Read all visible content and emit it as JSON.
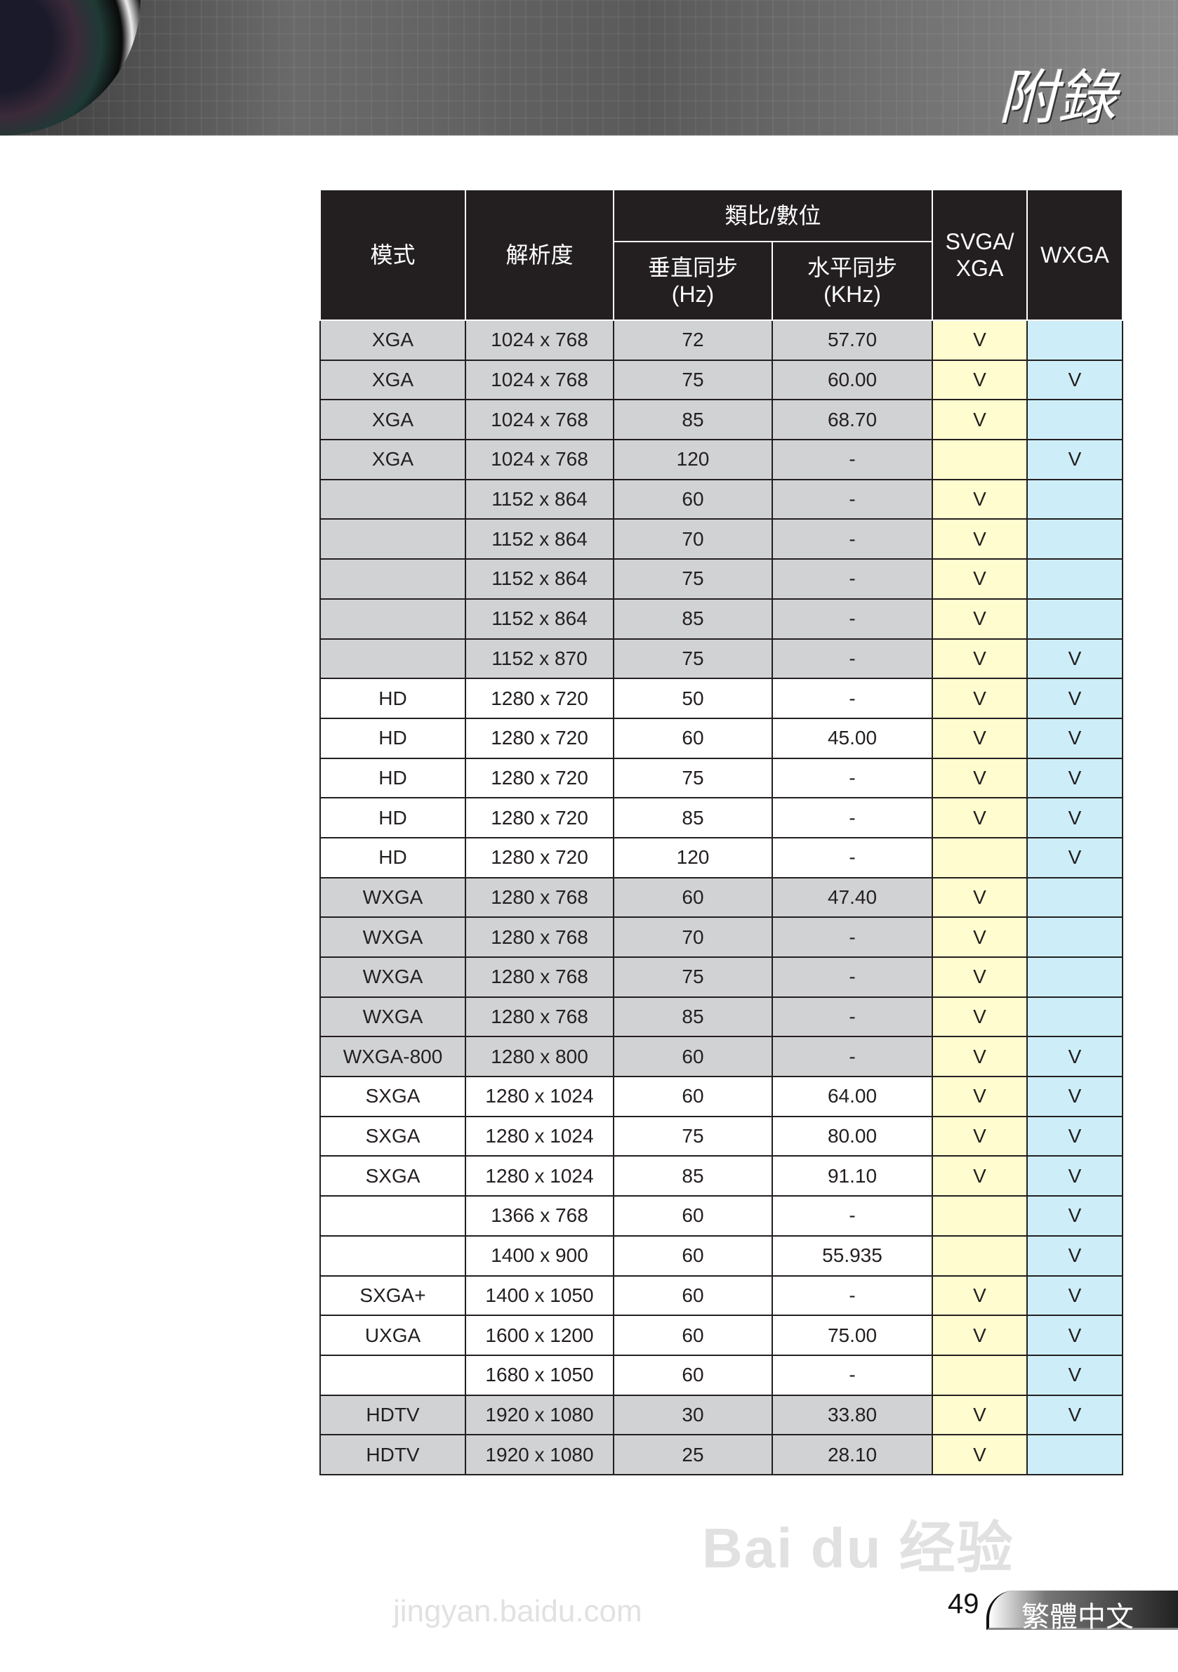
{
  "header": {
    "title": "附錄"
  },
  "colors": {
    "header_bg": "#231f20",
    "gray_row": "#d1d2d4",
    "svga_col": "#fffccf",
    "wxga_col": "#cdeef9"
  },
  "table": {
    "headers": {
      "mode": "模式",
      "resolution": "解析度",
      "analog_digital": "類比/數位",
      "vsync": "垂直同步",
      "vsync_unit": "(Hz)",
      "hsync": "水平同步",
      "hsync_unit": "(KHz)",
      "svga": "SVGA/",
      "svga2": "XGA",
      "wxga": "WXGA"
    },
    "rows": [
      {
        "mode": "XGA",
        "res": "1024 x 768",
        "v": "72",
        "h": "57.70",
        "svga": "V",
        "wxga": "",
        "shade": "gray"
      },
      {
        "mode": "XGA",
        "res": "1024 x 768",
        "v": "75",
        "h": "60.00",
        "svga": "V",
        "wxga": "V",
        "shade": "gray"
      },
      {
        "mode": "XGA",
        "res": "1024 x 768",
        "v": "85",
        "h": "68.70",
        "svga": "V",
        "wxga": "",
        "shade": "gray"
      },
      {
        "mode": "XGA",
        "res": "1024 x 768",
        "v": "120",
        "h": "-",
        "svga": "",
        "wxga": "V",
        "shade": "gray"
      },
      {
        "mode": "",
        "res": "1152 x 864",
        "v": "60",
        "h": "-",
        "svga": "V",
        "wxga": "",
        "shade": "gray"
      },
      {
        "mode": "",
        "res": "1152 x 864",
        "v": "70",
        "h": "-",
        "svga": "V",
        "wxga": "",
        "shade": "gray"
      },
      {
        "mode": "",
        "res": "1152 x 864",
        "v": "75",
        "h": "-",
        "svga": "V",
        "wxga": "",
        "shade": "gray"
      },
      {
        "mode": "",
        "res": "1152 x 864",
        "v": "85",
        "h": "-",
        "svga": "V",
        "wxga": "",
        "shade": "gray"
      },
      {
        "mode": "",
        "res": "1152 x 870",
        "v": "75",
        "h": "-",
        "svga": "V",
        "wxga": "V",
        "shade": "gray"
      },
      {
        "mode": "HD",
        "res": "1280 x 720",
        "v": "50",
        "h": "-",
        "svga": "V",
        "wxga": "V",
        "shade": "white"
      },
      {
        "mode": "HD",
        "res": "1280 x 720",
        "v": "60",
        "h": "45.00",
        "svga": "V",
        "wxga": "V",
        "shade": "white"
      },
      {
        "mode": "HD",
        "res": "1280 x 720",
        "v": "75",
        "h": "-",
        "svga": "V",
        "wxga": "V",
        "shade": "white"
      },
      {
        "mode": "HD",
        "res": "1280 x 720",
        "v": "85",
        "h": "-",
        "svga": "V",
        "wxga": "V",
        "shade": "white"
      },
      {
        "mode": "HD",
        "res": "1280 x 720",
        "v": "120",
        "h": "-",
        "svga": "",
        "wxga": "V",
        "shade": "white"
      },
      {
        "mode": "WXGA",
        "res": "1280 x 768",
        "v": "60",
        "h": "47.40",
        "svga": "V",
        "wxga": "",
        "shade": "gray"
      },
      {
        "mode": "WXGA",
        "res": "1280 x 768",
        "v": "70",
        "h": "-",
        "svga": "V",
        "wxga": "",
        "shade": "gray"
      },
      {
        "mode": "WXGA",
        "res": "1280 x 768",
        "v": "75",
        "h": "-",
        "svga": "V",
        "wxga": "",
        "shade": "gray"
      },
      {
        "mode": "WXGA",
        "res": "1280 x 768",
        "v": "85",
        "h": "-",
        "svga": "V",
        "wxga": "",
        "shade": "gray"
      },
      {
        "mode": "WXGA-800",
        "res": "1280 x 800",
        "v": "60",
        "h": "-",
        "svga": "V",
        "wxga": "V",
        "shade": "gray"
      },
      {
        "mode": "SXGA",
        "res": "1280 x 1024",
        "v": "60",
        "h": "64.00",
        "svga": "V",
        "wxga": "V",
        "shade": "white"
      },
      {
        "mode": "SXGA",
        "res": "1280 x 1024",
        "v": "75",
        "h": "80.00",
        "svga": "V",
        "wxga": "V",
        "shade": "white"
      },
      {
        "mode": "SXGA",
        "res": "1280 x 1024",
        "v": "85",
        "h": "91.10",
        "svga": "V",
        "wxga": "V",
        "shade": "white"
      },
      {
        "mode": "",
        "res": "1366 x 768",
        "v": "60",
        "h": "-",
        "svga": "",
        "wxga": "V",
        "shade": "white"
      },
      {
        "mode": "",
        "res": "1400 x 900",
        "v": "60",
        "h": "55.935",
        "svga": "",
        "wxga": "V",
        "shade": "white"
      },
      {
        "mode": "SXGA+",
        "res": "1400 x 1050",
        "v": "60",
        "h": "-",
        "svga": "V",
        "wxga": "V",
        "shade": "white"
      },
      {
        "mode": "UXGA",
        "res": "1600 x 1200",
        "v": "60",
        "h": "75.00",
        "svga": "V",
        "wxga": "V",
        "shade": "white"
      },
      {
        "mode": "",
        "res": "1680 x 1050",
        "v": "60",
        "h": "-",
        "svga": "",
        "wxga": "V",
        "shade": "white"
      },
      {
        "mode": "HDTV",
        "res": "1920 x 1080",
        "v": "30",
        "h": "33.80",
        "svga": "V",
        "wxga": "V",
        "shade": "gray"
      },
      {
        "mode": "HDTV",
        "res": "1920 x 1080",
        "v": "25",
        "h": "28.10",
        "svga": "V",
        "wxga": "",
        "shade": "gray"
      }
    ]
  },
  "footer": {
    "page_number": "49",
    "language": "繁體中文"
  },
  "watermark": {
    "logo": "Bai du 经验",
    "url": "jingyan.baidu.com"
  }
}
